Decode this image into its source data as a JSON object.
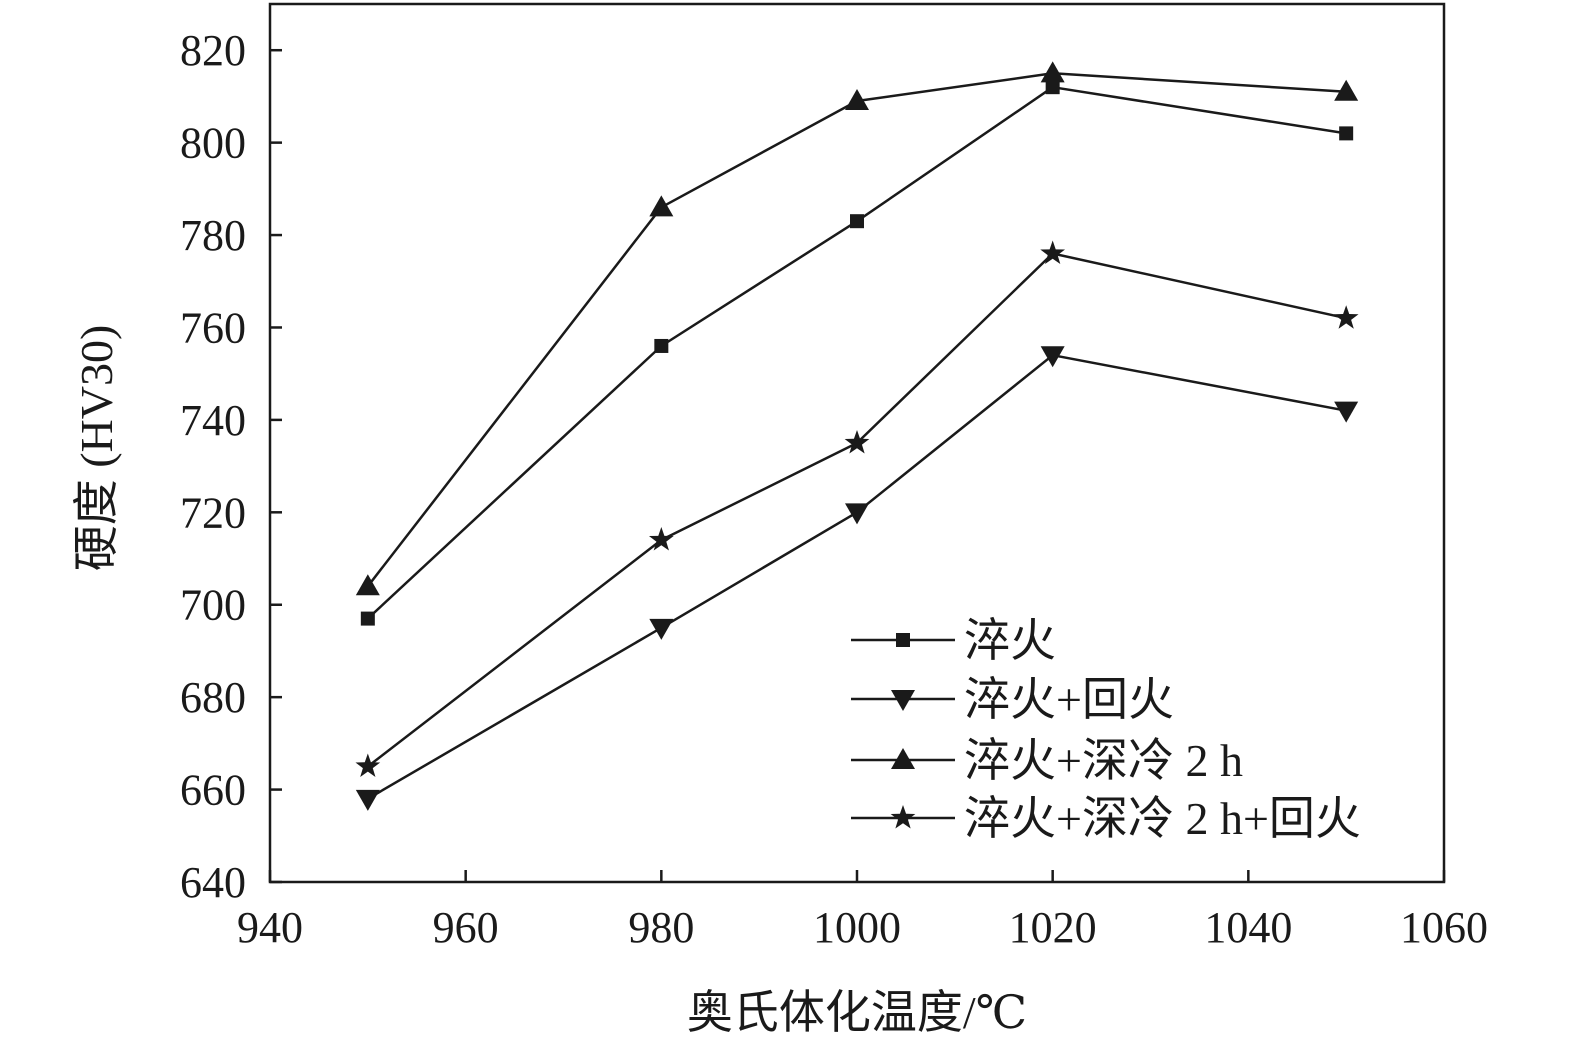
{
  "chart_data": {
    "type": "line",
    "title": "",
    "xlabel": "奥氏体化温度/℃",
    "ylabel": "硬度 (HV30)",
    "xlim": [
      940,
      1060
    ],
    "ylim": [
      640,
      830
    ],
    "xticks": [
      940,
      960,
      980,
      1000,
      1020,
      1040,
      1060
    ],
    "yticks": [
      640,
      660,
      680,
      700,
      720,
      740,
      760,
      780,
      800,
      820
    ],
    "x": [
      950,
      980,
      1000,
      1020,
      1050
    ],
    "grid": false,
    "legend_position": "bottom-right",
    "series": [
      {
        "name": "淬火",
        "marker": "square",
        "values": [
          697,
          756,
          783,
          812,
          802
        ]
      },
      {
        "name": "淬火+回火",
        "marker": "triangle-down",
        "values": [
          658,
          695,
          720,
          754,
          742
        ]
      },
      {
        "name": "淬火+深冷 2 h",
        "marker": "triangle-up",
        "values": [
          704,
          786,
          809,
          815,
          811
        ]
      },
      {
        "name": "淬火+深冷 2 h+回火",
        "marker": "star",
        "values": [
          665,
          714,
          735,
          776,
          762
        ]
      }
    ],
    "colors": {
      "line": "#1a1a1a",
      "background": "#ffffff"
    }
  }
}
